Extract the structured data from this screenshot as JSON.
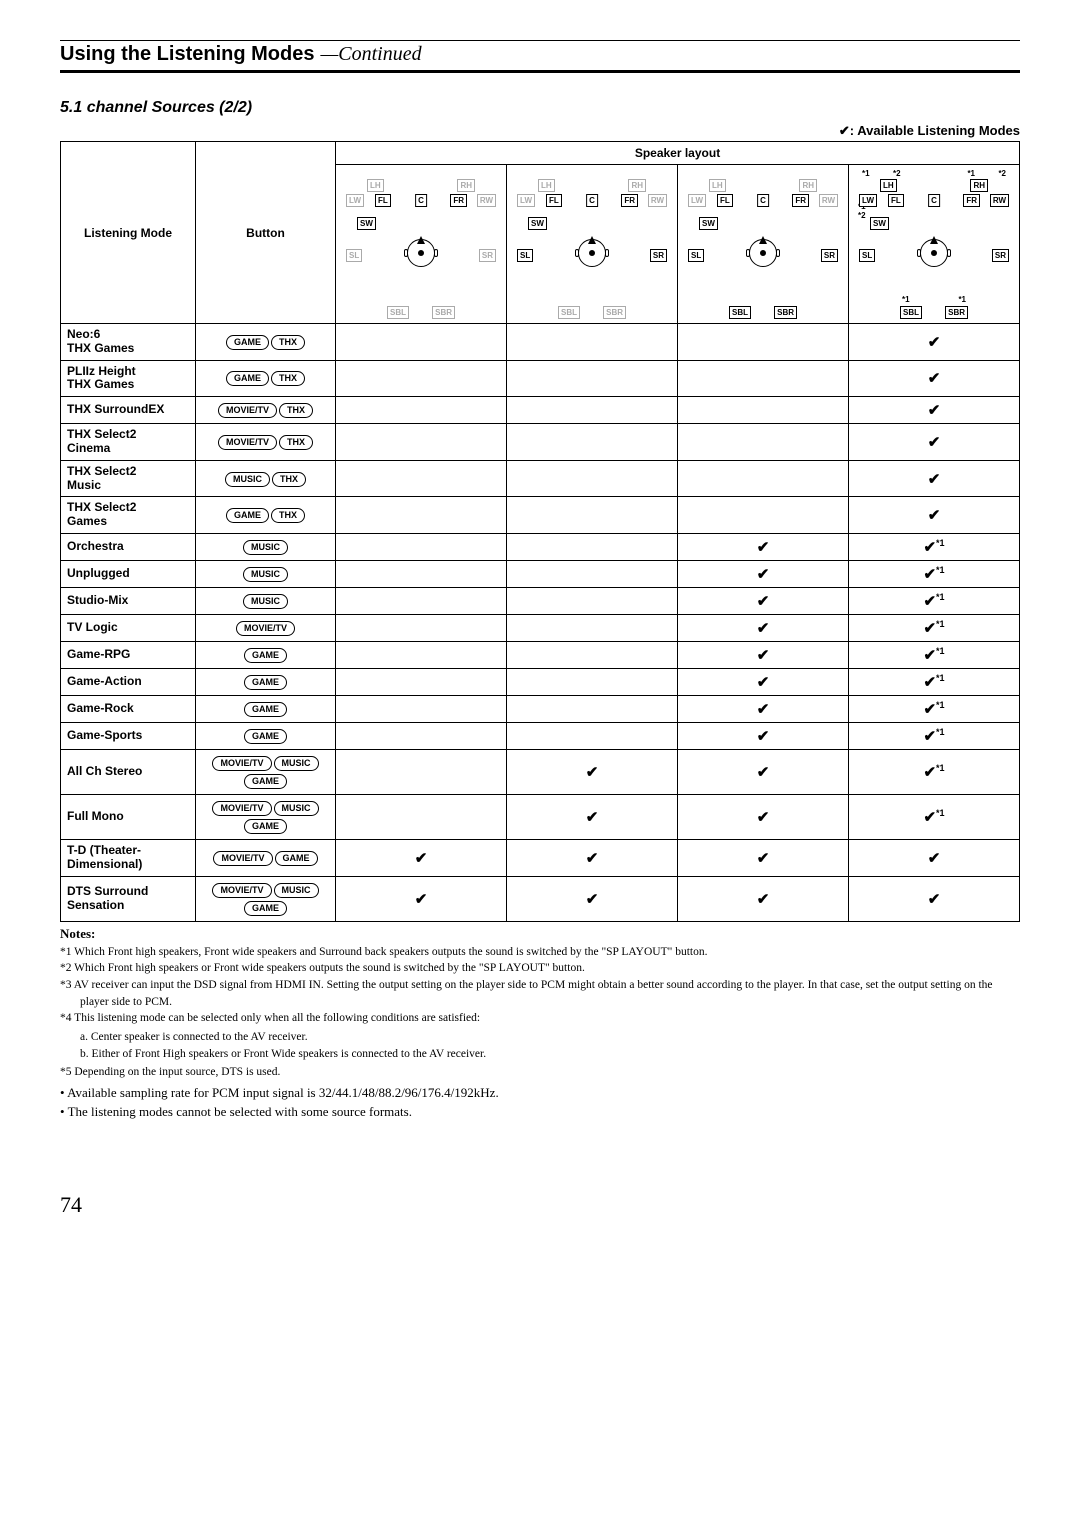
{
  "title_bold": "Using the Listening Modes",
  "title_italic": "—Continued",
  "subsection": "5.1 channel Sources (2/2)",
  "avail": "✔: Available Listening Modes",
  "headers": {
    "mode": "Listening Mode",
    "button": "Button",
    "layout": "Speaker layout"
  },
  "button_labels": {
    "game": "GAME",
    "thx": "THX",
    "movietv": "MOVIE/TV",
    "music": "MUSIC"
  },
  "speaker_labels": {
    "LH": "LH",
    "RH": "RH",
    "LW": "LW",
    "RW": "RW",
    "FL": "FL",
    "FR": "FR",
    "C": "C",
    "SW": "SW",
    "SL": "SL",
    "SR": "SR",
    "SBL": "SBL",
    "SBR": "SBR",
    "s1": "*1",
    "s1lh": "*1",
    "s1rh": "*1",
    "s2": "*2",
    "s1b": "*1",
    "s2b": "*2"
  },
  "rows": [
    {
      "label": "Neo:6 THX Games",
      "buttons": [
        "game",
        "thx"
      ],
      "c": [
        "",
        "",
        "",
        "✔"
      ]
    },
    {
      "label": "PLIIz Height THX Games",
      "buttons": [
        "game",
        "thx"
      ],
      "c": [
        "",
        "",
        "",
        "✔"
      ]
    },
    {
      "label": "THX SurroundEX",
      "buttons": [
        "movietv",
        "thx"
      ],
      "c": [
        "",
        "",
        "",
        "✔"
      ]
    },
    {
      "label": "THX Select2 Cinema",
      "buttons": [
        "movietv",
        "thx"
      ],
      "c": [
        "",
        "",
        "",
        "✔"
      ]
    },
    {
      "label": "THX Select2 Music",
      "buttons": [
        "music",
        "thx"
      ],
      "c": [
        "",
        "",
        "",
        "✔"
      ]
    },
    {
      "label": "THX Select2 Games",
      "buttons": [
        "game",
        "thx"
      ],
      "c": [
        "",
        "",
        "",
        "✔"
      ]
    },
    {
      "label": "Orchestra",
      "buttons": [
        "music"
      ],
      "c": [
        "",
        "",
        "✔",
        "✔*1"
      ]
    },
    {
      "label": "Unplugged",
      "buttons": [
        "music"
      ],
      "c": [
        "",
        "",
        "✔",
        "✔*1"
      ]
    },
    {
      "label": "Studio-Mix",
      "buttons": [
        "music"
      ],
      "c": [
        "",
        "",
        "✔",
        "✔*1"
      ]
    },
    {
      "label": "TV Logic",
      "buttons": [
        "movietv"
      ],
      "c": [
        "",
        "",
        "✔",
        "✔*1"
      ]
    },
    {
      "label": "Game-RPG",
      "buttons": [
        "game"
      ],
      "c": [
        "",
        "",
        "✔",
        "✔*1"
      ]
    },
    {
      "label": "Game-Action",
      "buttons": [
        "game"
      ],
      "c": [
        "",
        "",
        "✔",
        "✔*1"
      ]
    },
    {
      "label": "Game-Rock",
      "buttons": [
        "game"
      ],
      "c": [
        "",
        "",
        "✔",
        "✔*1"
      ]
    },
    {
      "label": "Game-Sports",
      "buttons": [
        "game"
      ],
      "c": [
        "",
        "",
        "✔",
        "✔*1"
      ]
    },
    {
      "label": "All Ch Stereo",
      "buttons": [
        "movietv",
        "music",
        "game"
      ],
      "c": [
        "",
        "✔",
        "✔",
        "✔*1"
      ]
    },
    {
      "label": "Full Mono",
      "buttons": [
        "movietv",
        "music",
        "game"
      ],
      "c": [
        "",
        "✔",
        "✔",
        "✔*1"
      ]
    },
    {
      "label": "T-D (Theater-Dimensional)",
      "buttons": [
        "movietv",
        "game"
      ],
      "c": [
        "✔",
        "✔",
        "✔",
        "✔"
      ]
    },
    {
      "label": "DTS Surround Sensation",
      "buttons": [
        "movietv",
        "music",
        "game"
      ],
      "c": [
        "✔",
        "✔",
        "✔",
        "✔"
      ]
    }
  ],
  "notes_hdr": "Notes:",
  "notes": [
    "*1  Which Front high speakers, Front wide speakers and Surround back speakers outputs the sound is switched by the \"SP LAYOUT\" button.",
    "*2  Which Front high speakers or Front wide speakers outputs the sound is switched by the \"SP LAYOUT\" button.",
    "*3  AV receiver can input the DSD signal from HDMI IN. Setting the output setting on the player side to PCM might obtain a better sound according to the player. In that case, set the output setting on the player side to PCM.",
    "*4  This listening mode can be selected only when all the following conditions are satisfied:"
  ],
  "notes_sub": [
    "a. Center speaker is connected to the AV receiver.",
    "b. Either of Front High speakers or Front Wide speakers is connected to the AV receiver."
  ],
  "notes2": [
    "*5  Depending on the input source, DTS is used."
  ],
  "bullets": [
    "•  Available sampling rate for PCM input signal is 32/44.1/48/88.2/96/176.4/192kHz.",
    "•  The listening modes cannot be selected with some source formats."
  ],
  "page": "74",
  "layouts": [
    {
      "gray_lh_rh": true,
      "gray_lw_rw": true,
      "gray_sb": true,
      "gray_slsr": true,
      "ann_top": false,
      "ann_sb": false
    },
    {
      "gray_lh_rh": true,
      "gray_lw_rw": true,
      "gray_sb": true,
      "gray_slsr": false,
      "ann_top": false,
      "ann_sb": false
    },
    {
      "gray_lh_rh": true,
      "gray_lw_rw": true,
      "gray_sb": false,
      "gray_slsr": false,
      "ann_top": false,
      "ann_sb": false
    },
    {
      "gray_lh_rh": false,
      "gray_lw_rw": false,
      "gray_sb": false,
      "gray_slsr": false,
      "ann_top": true,
      "ann_sb": true
    }
  ]
}
